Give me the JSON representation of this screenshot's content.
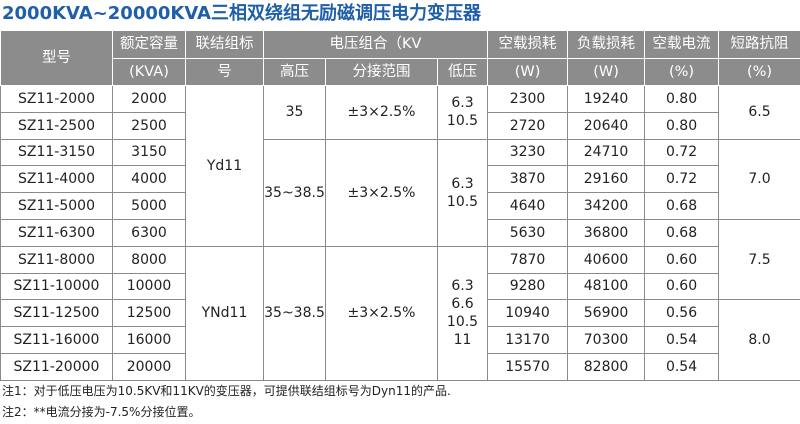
{
  "title": "2000KVA~20000KVA三相双绕组无励磁调压电力变压器",
  "header": {
    "model": "型号",
    "capacity": [
      "额定容量",
      "(KVA)"
    ],
    "vector": [
      "联结组标",
      "号"
    ],
    "voltage": "电压组合（KV",
    "hv": "高压",
    "tap": "分接范围",
    "lv": "低压",
    "noload": [
      "空载损耗",
      "(W)"
    ],
    "load": [
      "负载损耗",
      "(W)"
    ],
    "current": [
      "空载电流",
      "(%)"
    ],
    "impedance": [
      "短路抗阻",
      "(%)"
    ]
  },
  "rows": [
    [
      "SZ11-2000",
      "2000",
      "2300",
      "19240",
      "0.80"
    ],
    [
      "SZ11-2500",
      "2500",
      "2720",
      "20640",
      "0.80"
    ],
    [
      "SZ11-3150",
      "3150",
      "3230",
      "24710",
      "0.72"
    ],
    [
      "SZ11-4000",
      "4000",
      "3870",
      "29160",
      "0.72"
    ],
    [
      "SZ11-5000",
      "5000",
      "4640",
      "34200",
      "0.68"
    ],
    [
      "SZ11-6300",
      "6300",
      "5630",
      "36800",
      "0.68"
    ],
    [
      "SZ11-8000",
      "8000",
      "7870",
      "40600",
      "0.60"
    ],
    [
      "SZ11-10000",
      "10000",
      "9280",
      "48100",
      "0.60"
    ],
    [
      "SZ11-12500",
      "12500",
      "10940",
      "56900",
      "0.56"
    ],
    [
      "SZ11-16000",
      "16000",
      "13170",
      "70300",
      "0.54"
    ],
    [
      "SZ11-20000",
      "20000",
      "15570",
      "82800",
      "0.54"
    ]
  ],
  "groups": {
    "vector": [
      "Yd11",
      "YNd11"
    ],
    "hv": [
      "35",
      "35~38.5",
      "35~38.5"
    ],
    "tap": [
      "±3×2.5%",
      "±3×2.5%",
      "±3×2.5%"
    ],
    "lv": [
      [
        "6.3",
        "10.5"
      ],
      [
        "6.3",
        "10.5"
      ],
      [
        "6.3",
        "6.6",
        "10.5",
        "11"
      ]
    ],
    "impedance": [
      "6.5",
      "7.0",
      "7.5",
      "8.0"
    ]
  },
  "notes": [
    "注1：对于低压电压为10.5KV和11KV的变压器，可提供联结组标号为Dyn11的产品.",
    "注2：**电流分接为-7.5%分接位置。"
  ]
}
